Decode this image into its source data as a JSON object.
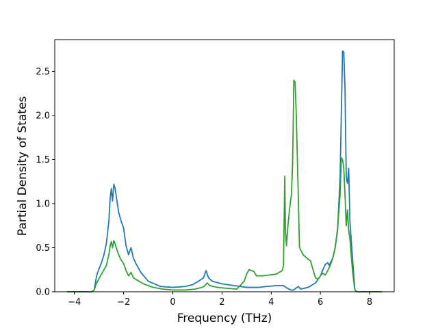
{
  "chart_data": {
    "type": "line",
    "title": "",
    "xlabel": "Frequency (THz)",
    "ylabel": "Partial Density of States",
    "xlim": [
      -4.8,
      9.0
    ],
    "ylim": [
      0.0,
      2.86
    ],
    "xticks": [
      -4,
      -2,
      0,
      2,
      4,
      6,
      8
    ],
    "xtick_labels": [
      "−4",
      "−2",
      "0",
      "2",
      "4",
      "6",
      "8"
    ],
    "yticks": [
      0.0,
      0.5,
      1.0,
      1.5,
      2.0,
      2.5
    ],
    "ytick_labels": [
      "0.0",
      "0.5",
      "1.0",
      "1.5",
      "2.0",
      "2.5"
    ],
    "grid": false,
    "legend": "none",
    "series": [
      {
        "color": "#1f77b4",
        "points": [
          [
            -4.3,
            0.0
          ],
          [
            -3.3,
            0.0
          ],
          [
            -3.2,
            0.02
          ],
          [
            -3.1,
            0.18
          ],
          [
            -3.0,
            0.26
          ],
          [
            -2.9,
            0.33
          ],
          [
            -2.8,
            0.42
          ],
          [
            -2.7,
            0.55
          ],
          [
            -2.6,
            0.8
          ],
          [
            -2.55,
            1.05
          ],
          [
            -2.5,
            1.17
          ],
          [
            -2.45,
            1.03
          ],
          [
            -2.4,
            1.22
          ],
          [
            -2.35,
            1.18
          ],
          [
            -2.3,
            1.08
          ],
          [
            -2.2,
            0.9
          ],
          [
            -2.1,
            0.8
          ],
          [
            -2.0,
            0.72
          ],
          [
            -1.9,
            0.52
          ],
          [
            -1.8,
            0.42
          ],
          [
            -1.7,
            0.5
          ],
          [
            -1.6,
            0.38
          ],
          [
            -1.5,
            0.32
          ],
          [
            -1.3,
            0.22
          ],
          [
            -1.0,
            0.12
          ],
          [
            -0.5,
            0.06
          ],
          [
            0.0,
            0.05
          ],
          [
            0.5,
            0.06
          ],
          [
            0.8,
            0.08
          ],
          [
            1.1,
            0.13
          ],
          [
            1.25,
            0.16
          ],
          [
            1.35,
            0.24
          ],
          [
            1.45,
            0.16
          ],
          [
            1.6,
            0.12
          ],
          [
            2.0,
            0.09
          ],
          [
            2.5,
            0.07
          ],
          [
            3.0,
            0.05
          ],
          [
            3.3,
            0.05
          ],
          [
            3.5,
            0.05
          ],
          [
            3.8,
            0.06
          ],
          [
            4.2,
            0.07
          ],
          [
            4.5,
            0.07
          ],
          [
            4.65,
            0.04
          ],
          [
            4.8,
            0.02
          ],
          [
            4.9,
            0.02
          ],
          [
            5.0,
            0.04
          ],
          [
            5.1,
            0.06
          ],
          [
            5.2,
            0.03
          ],
          [
            5.5,
            0.05
          ],
          [
            5.8,
            0.1
          ],
          [
            6.0,
            0.18
          ],
          [
            6.1,
            0.25
          ],
          [
            6.2,
            0.31
          ],
          [
            6.3,
            0.33
          ],
          [
            6.35,
            0.3
          ],
          [
            6.5,
            0.38
          ],
          [
            6.6,
            0.5
          ],
          [
            6.7,
            0.7
          ],
          [
            6.8,
            1.3
          ],
          [
            6.85,
            2.0
          ],
          [
            6.9,
            2.73
          ],
          [
            6.95,
            2.72
          ],
          [
            7.0,
            2.3
          ],
          [
            7.05,
            1.3
          ],
          [
            7.1,
            1.23
          ],
          [
            7.15,
            1.4
          ],
          [
            7.2,
            0.8
          ],
          [
            7.3,
            0.4
          ],
          [
            7.4,
            0.02
          ],
          [
            7.5,
            0.0
          ],
          [
            8.5,
            0.0
          ]
        ]
      },
      {
        "color": "#2ca02c",
        "points": [
          [
            -4.3,
            0.0
          ],
          [
            -3.3,
            0.0
          ],
          [
            -3.2,
            0.02
          ],
          [
            -3.1,
            0.1
          ],
          [
            -3.0,
            0.15
          ],
          [
            -2.9,
            0.2
          ],
          [
            -2.8,
            0.25
          ],
          [
            -2.7,
            0.3
          ],
          [
            -2.6,
            0.42
          ],
          [
            -2.55,
            0.52
          ],
          [
            -2.5,
            0.57
          ],
          [
            -2.45,
            0.5
          ],
          [
            -2.4,
            0.58
          ],
          [
            -2.35,
            0.55
          ],
          [
            -2.3,
            0.5
          ],
          [
            -2.2,
            0.42
          ],
          [
            -2.1,
            0.36
          ],
          [
            -2.0,
            0.32
          ],
          [
            -1.9,
            0.24
          ],
          [
            -1.8,
            0.18
          ],
          [
            -1.7,
            0.22
          ],
          [
            -1.6,
            0.16
          ],
          [
            -1.5,
            0.14
          ],
          [
            -1.2,
            0.09
          ],
          [
            -0.8,
            0.05
          ],
          [
            -0.4,
            0.03
          ],
          [
            0.0,
            0.02
          ],
          [
            0.5,
            0.02
          ],
          [
            0.9,
            0.03
          ],
          [
            1.2,
            0.05
          ],
          [
            1.3,
            0.07
          ],
          [
            1.4,
            0.1
          ],
          [
            1.5,
            0.07
          ],
          [
            1.8,
            0.05
          ],
          [
            2.2,
            0.04
          ],
          [
            2.6,
            0.03
          ],
          [
            2.8,
            0.09
          ],
          [
            2.9,
            0.12
          ],
          [
            3.0,
            0.2
          ],
          [
            3.1,
            0.25
          ],
          [
            3.2,
            0.24
          ],
          [
            3.3,
            0.23
          ],
          [
            3.4,
            0.18
          ],
          [
            3.6,
            0.18
          ],
          [
            3.9,
            0.19
          ],
          [
            4.2,
            0.2
          ],
          [
            4.45,
            0.24
          ],
          [
            4.5,
            0.3
          ],
          [
            4.55,
            1.31
          ],
          [
            4.58,
            0.7
          ],
          [
            4.62,
            0.52
          ],
          [
            4.68,
            0.75
          ],
          [
            4.75,
            0.95
          ],
          [
            4.82,
            1.1
          ],
          [
            4.87,
            1.45
          ],
          [
            4.92,
            2.4
          ],
          [
            4.97,
            2.38
          ],
          [
            5.02,
            2.0
          ],
          [
            5.1,
            1.1
          ],
          [
            5.15,
            0.5
          ],
          [
            5.3,
            0.42
          ],
          [
            5.5,
            0.37
          ],
          [
            5.6,
            0.35
          ],
          [
            5.7,
            0.25
          ],
          [
            5.8,
            0.16
          ],
          [
            5.9,
            0.14
          ],
          [
            6.0,
            0.18
          ],
          [
            6.1,
            0.21
          ],
          [
            6.2,
            0.19
          ],
          [
            6.3,
            0.24
          ],
          [
            6.4,
            0.3
          ],
          [
            6.5,
            0.38
          ],
          [
            6.6,
            0.5
          ],
          [
            6.7,
            0.72
          ],
          [
            6.8,
            1.1
          ],
          [
            6.85,
            1.52
          ],
          [
            6.9,
            1.5
          ],
          [
            6.95,
            1.4
          ],
          [
            7.0,
            1.1
          ],
          [
            7.05,
            0.75
          ],
          [
            7.1,
            0.93
          ],
          [
            7.15,
            0.7
          ],
          [
            7.2,
            0.6
          ],
          [
            7.3,
            0.25
          ],
          [
            7.4,
            0.02
          ],
          [
            7.5,
            0.0
          ],
          [
            8.5,
            0.0
          ]
        ]
      }
    ]
  }
}
